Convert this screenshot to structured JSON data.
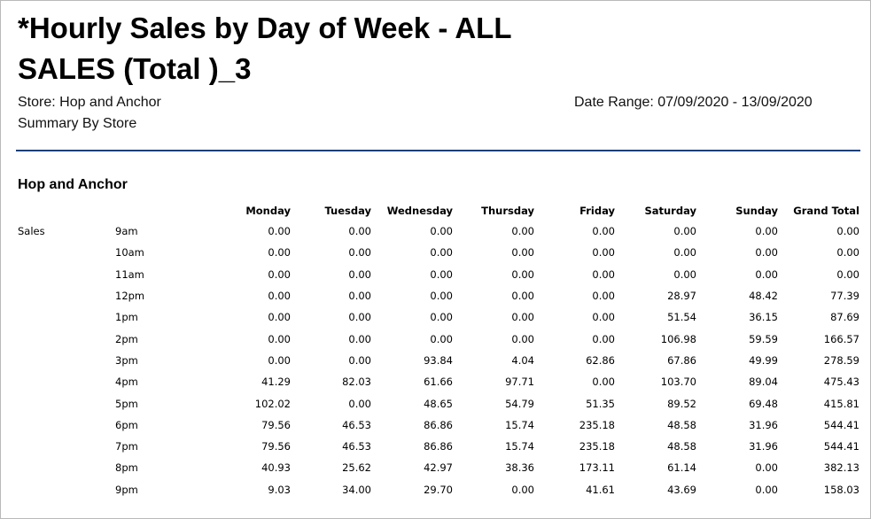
{
  "report": {
    "title": "*Hourly Sales by Day of Week - ALL SALES (Total )_3",
    "store_line": "Store:  Hop and Anchor",
    "summary_line": "Summary By Store",
    "date_range": "Date Range: 07/09/2020 - 13/09/2020",
    "colors": {
      "divider": "#1c3f7a"
    }
  },
  "section": {
    "title": "Hop and Anchor",
    "metric_label": "Sales",
    "columns": [
      "Monday",
      "Tuesday",
      "Wednesday",
      "Thursday",
      "Friday",
      "Saturday",
      "Sunday",
      "Grand Total"
    ],
    "rows": [
      {
        "hour": "9am",
        "values": [
          "0.00",
          "0.00",
          "0.00",
          "0.00",
          "0.00",
          "0.00",
          "0.00",
          "0.00"
        ]
      },
      {
        "hour": "10am",
        "values": [
          "0.00",
          "0.00",
          "0.00",
          "0.00",
          "0.00",
          "0.00",
          "0.00",
          "0.00"
        ]
      },
      {
        "hour": "11am",
        "values": [
          "0.00",
          "0.00",
          "0.00",
          "0.00",
          "0.00",
          "0.00",
          "0.00",
          "0.00"
        ]
      },
      {
        "hour": "12pm",
        "values": [
          "0.00",
          "0.00",
          "0.00",
          "0.00",
          "0.00",
          "28.97",
          "48.42",
          "77.39"
        ]
      },
      {
        "hour": "1pm",
        "values": [
          "0.00",
          "0.00",
          "0.00",
          "0.00",
          "0.00",
          "51.54",
          "36.15",
          "87.69"
        ]
      },
      {
        "hour": "2pm",
        "values": [
          "0.00",
          "0.00",
          "0.00",
          "0.00",
          "0.00",
          "106.98",
          "59.59",
          "166.57"
        ]
      },
      {
        "hour": "3pm",
        "values": [
          "0.00",
          "0.00",
          "93.84",
          "4.04",
          "62.86",
          "67.86",
          "49.99",
          "278.59"
        ]
      },
      {
        "hour": "4pm",
        "values": [
          "41.29",
          "82.03",
          "61.66",
          "97.71",
          "0.00",
          "103.70",
          "89.04",
          "475.43"
        ]
      },
      {
        "hour": "5pm",
        "values": [
          "102.02",
          "0.00",
          "48.65",
          "54.79",
          "51.35",
          "89.52",
          "69.48",
          "415.81"
        ]
      },
      {
        "hour": "6pm",
        "values": [
          "79.56",
          "46.53",
          "86.86",
          "15.74",
          "235.18",
          "48.58",
          "31.96",
          "544.41"
        ]
      },
      {
        "hour": "7pm",
        "values": [
          "79.56",
          "46.53",
          "86.86",
          "15.74",
          "235.18",
          "48.58",
          "31.96",
          "544.41"
        ]
      },
      {
        "hour": "8pm",
        "values": [
          "40.93",
          "25.62",
          "42.97",
          "38.36",
          "173.11",
          "61.14",
          "0.00",
          "382.13"
        ]
      },
      {
        "hour": "9pm",
        "values": [
          "9.03",
          "34.00",
          "29.70",
          "0.00",
          "41.61",
          "43.69",
          "0.00",
          "158.03"
        ]
      }
    ]
  }
}
